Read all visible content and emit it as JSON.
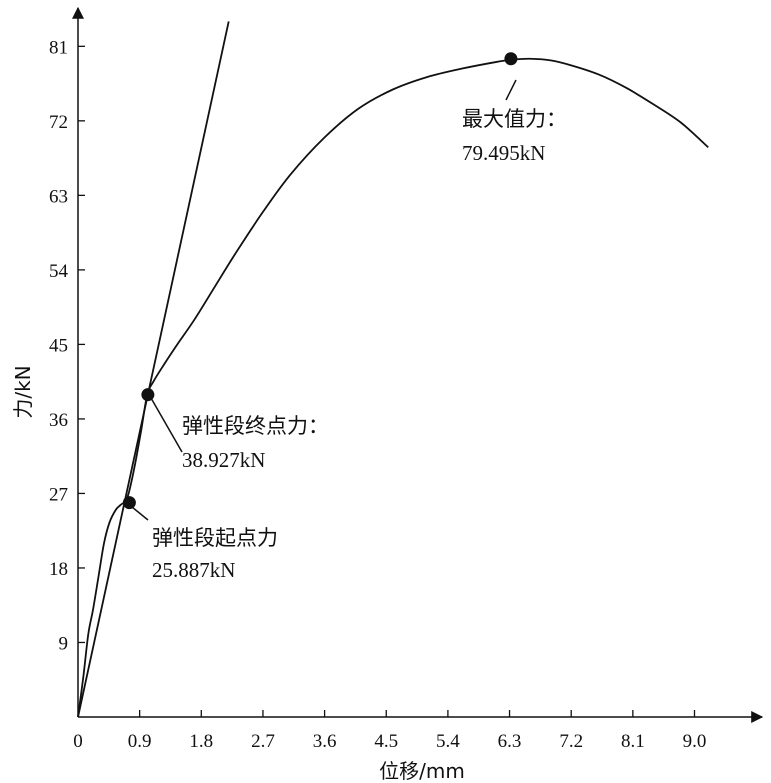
{
  "chart_data": {
    "type": "line",
    "title": "",
    "xlabel": "位移/mm",
    "ylabel": "力/kN",
    "xlim": [
      0,
      9.9
    ],
    "ylim": [
      0,
      86
    ],
    "x_ticks": [
      "0",
      "0.9",
      "1.8",
      "2.7",
      "3.6",
      "4.5",
      "5.4",
      "6.3",
      "7.2",
      "8.1",
      "9.0"
    ],
    "y_ticks": [
      "9",
      "18",
      "27",
      "36",
      "45",
      "54",
      "63",
      "72",
      "81"
    ],
    "grid": false,
    "legend": "none",
    "series": [
      {
        "role": "load-displacement curve",
        "x": [
          0,
          0.08,
          0.15,
          0.22,
          0.3,
          0.38,
          0.46,
          0.55,
          0.62,
          0.72,
          0.82,
          0.92,
          1.01,
          1.1,
          1.25,
          1.45,
          1.7,
          2.0,
          2.3,
          2.7,
          3.1,
          3.6,
          4.1,
          4.6,
          5.1,
          5.6,
          6.1,
          6.35,
          6.6,
          6.9,
          7.2,
          7.6,
          8.0,
          8.4,
          8.8,
          9.2
        ],
        "y": [
          0,
          5,
          10,
          13,
          17,
          21,
          23.5,
          25,
          25.6,
          26.5,
          30,
          34.5,
          38.9,
          40.5,
          42.5,
          45,
          48,
          52,
          56,
          61,
          65.5,
          70,
          73.5,
          75.8,
          77.3,
          78.3,
          79.1,
          79.4,
          79.5,
          79.3,
          78.7,
          77.6,
          76.0,
          74.0,
          71.8,
          68.8
        ]
      },
      {
        "role": "elastic tangent line",
        "x": [
          0,
          2.2
        ],
        "y": [
          0,
          84
        ]
      }
    ],
    "annotations": [
      {
        "label": "弹性段起点力",
        "value": "25.887kN",
        "x": 0.75,
        "y": 25.887
      },
      {
        "label": "弹性段终点力：",
        "value": "38.927kN",
        "x": 1.02,
        "y": 38.927
      },
      {
        "label": "最大值力：",
        "value": "79.495kN",
        "x": 6.32,
        "y": 79.495
      }
    ]
  }
}
